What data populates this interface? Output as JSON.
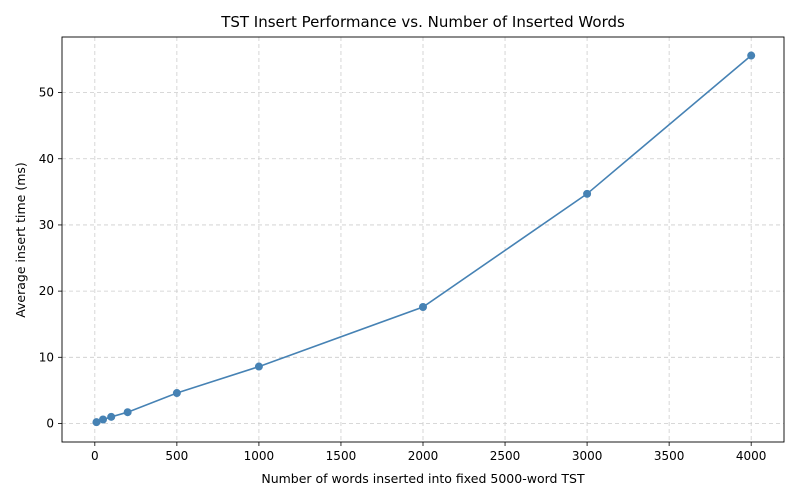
{
  "chart_data": {
    "type": "line",
    "title": "TST Insert Performance vs. Number of Inserted Words",
    "xlabel": "Number of words inserted into fixed 5000-word TST",
    "ylabel": "Average insert time (ms)",
    "xlim": [
      -200,
      4200
    ],
    "ylim": [
      -2.8,
      58.4
    ],
    "xticks": [
      0,
      500,
      1000,
      1500,
      2000,
      2500,
      3000,
      3500,
      4000
    ],
    "yticks": [
      0,
      10,
      20,
      30,
      40,
      50
    ],
    "grid": true,
    "series": [
      {
        "color": "#4682b4",
        "marker": "circle",
        "x": [
          10,
          50,
          100,
          200,
          500,
          1000,
          2000,
          3000,
          4000
        ],
        "y": [
          0.2,
          0.6,
          1.0,
          1.7,
          4.6,
          8.6,
          17.6,
          34.7,
          55.6
        ]
      }
    ]
  }
}
